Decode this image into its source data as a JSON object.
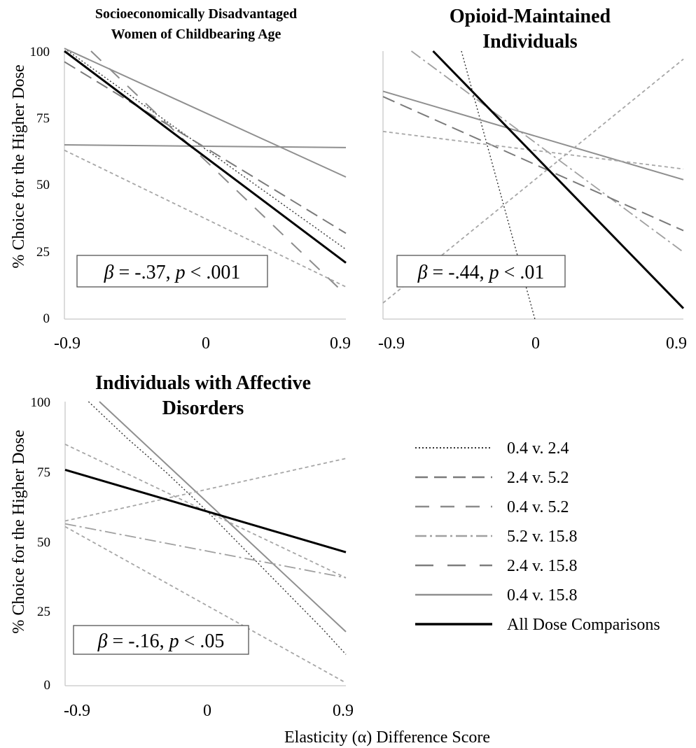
{
  "figure": {
    "xlabel": "Elasticity (α) Difference Score",
    "ylabel": "% Choice for the Higher Dose"
  },
  "series_styles": [
    {
      "name": "0.4 v. 2.4",
      "color": "#333333",
      "width": 1.4,
      "dash": "2,3"
    },
    {
      "name": "2.4 v. 5.2",
      "color": "#7a7a7a",
      "width": 2.0,
      "dash": "18,9"
    },
    {
      "name": "0.4 v. 5.2",
      "color": "#8c8c8c",
      "width": 2.0,
      "dash": "20,16"
    },
    {
      "name": "5.2 v. 15.8",
      "color": "#a0a0a0",
      "width": 1.8,
      "dash": "16,5,3,5"
    },
    {
      "name": "2.4 v. 15.8",
      "color": "#7d7d7d",
      "width": 2.0,
      "dash": "26,20"
    },
    {
      "name": "0.4 v. 15.8",
      "color": "#8f8f8f",
      "width": 2.0,
      "dash": ""
    },
    {
      "name": "All Dose Comparisons",
      "color": "#000000",
      "width": 3.0,
      "dash": ""
    },
    {
      "name": "",
      "color": "#a6a6a6",
      "width": 1.8,
      "dash": "5,4"
    }
  ],
  "legend": {
    "items": [
      "0.4 v. 2.4",
      "2.4 v. 5.2",
      "0.4 v. 5.2",
      "5.2 v. 15.8",
      "2.4 v. 15.8",
      "0.4 v. 15.8",
      "All Dose Comparisons"
    ]
  },
  "chart_data": [
    {
      "type": "line",
      "title_lines": [
        "Socioeconomically Disadvantaged",
        "Women of Childbearing Age"
      ],
      "xlabel": "",
      "ylabel": "% Choice for the Higher Dose",
      "xlim": [
        -0.9,
        0.9
      ],
      "ylim": [
        0,
        100
      ],
      "xticks": [
        "-0.9",
        "0",
        "0.9"
      ],
      "yticks": [
        "0",
        "25",
        "50",
        "75",
        "100"
      ],
      "annotation": {
        "beta": "β",
        "text": " = -.37, ",
        "p": "p",
        "rest": " < .001"
      },
      "series": [
        {
          "name": "0.4 v. 2.4",
          "x": [
            -0.9,
            0.9
          ],
          "y": [
            101,
            26
          ]
        },
        {
          "name": "2.4 v. 5.2",
          "x": [
            -0.9,
            0.9
          ],
          "y": [
            96,
            32
          ]
        },
        {
          "name": "0.4 v. 5.2",
          "x": [
            -0.73,
            0.9
          ],
          "y": [
            100,
            9
          ]
        },
        {
          "name": "0.4 v. 15.8",
          "x": [
            -0.9,
            0.9
          ],
          "y": [
            101,
            53
          ]
        },
        {
          "name": "0.4 v. 15.8",
          "x": [
            -0.9,
            0.9
          ],
          "y": [
            65,
            64
          ]
        },
        {
          "name": "",
          "x": [
            -0.9,
            0.9
          ],
          "y": [
            63,
            12
          ]
        },
        {
          "name": "All Dose Comparisons",
          "x": [
            -0.9,
            0.9
          ],
          "y": [
            100,
            21
          ]
        }
      ]
    },
    {
      "type": "line",
      "title_lines": [
        "Opioid-Maintained",
        "Individuals"
      ],
      "xlabel": "",
      "ylabel": "",
      "xlim": [
        -0.9,
        0.9
      ],
      "ylim": [
        0,
        100
      ],
      "xticks": [
        "-0.9",
        "0",
        "0.9"
      ],
      "yticks": [],
      "annotation": {
        "beta": "β",
        "text": " = -.44, ",
        "p": "p",
        "rest": " < .01"
      },
      "series": [
        {
          "name": "0.4 v. 2.4",
          "x": [
            -0.43,
            0.01
          ],
          "y": [
            100,
            0
          ]
        },
        {
          "name": "5.2 v. 15.8",
          "x": [
            -0.73,
            0.9
          ],
          "y": [
            100,
            25
          ]
        },
        {
          "name": "2.4 v. 5.2",
          "x": [
            -0.9,
            0.9
          ],
          "y": [
            83,
            33
          ]
        },
        {
          "name": "0.4 v. 15.8",
          "x": [
            -0.9,
            0.9
          ],
          "y": [
            85,
            52
          ]
        },
        {
          "name": "",
          "x": [
            -0.9,
            0.9
          ],
          "y": [
            70,
            56
          ]
        },
        {
          "name": "",
          "x": [
            -0.9,
            0.9
          ],
          "y": [
            6,
            97
          ]
        },
        {
          "name": "All Dose Comparisons",
          "x": [
            -0.6,
            0.9
          ],
          "y": [
            100,
            4
          ]
        }
      ]
    },
    {
      "type": "line",
      "title_lines": [
        "Individuals with Affective",
        "Disorders"
      ],
      "xlabel": "Elasticity (α) Difference Score",
      "ylabel": "% Choice for the Higher Dose",
      "xlim": [
        -0.9,
        0.9
      ],
      "ylim": [
        0,
        100
      ],
      "xticks": [
        "-0.9",
        "0",
        "0.9"
      ],
      "yticks": [
        "0",
        "25",
        "50",
        "75",
        "100"
      ],
      "annotation": {
        "beta": "β",
        "text": " = -.16, ",
        "p": "p",
        "rest": " < .05"
      },
      "series": [
        {
          "name": "0.4 v. 2.4",
          "x": [
            -0.75,
            -0.5,
            -0.25,
            0.0,
            0.25,
            0.5,
            0.75,
            0.9
          ],
          "y": [
            100,
            87,
            75,
            62,
            48,
            34,
            20,
            11
          ]
        },
        {
          "name": "0.4 v. 15.8",
          "x": [
            -0.68,
            0.9
          ],
          "y": [
            100,
            19
          ]
        },
        {
          "name": "",
          "x": [
            -0.9,
            0.9
          ],
          "y": [
            58,
            80
          ]
        },
        {
          "name": "",
          "x": [
            -0.9,
            0.9
          ],
          "y": [
            85,
            38
          ]
        },
        {
          "name": "5.2 v. 15.8",
          "x": [
            -0.9,
            0.9
          ],
          "y": [
            57,
            38
          ]
        },
        {
          "name": "",
          "x": [
            -0.9,
            0.9
          ],
          "y": [
            56,
            1
          ]
        },
        {
          "name": "All Dose Comparisons",
          "x": [
            -0.9,
            0.9
          ],
          "y": [
            76,
            47
          ]
        }
      ]
    }
  ]
}
